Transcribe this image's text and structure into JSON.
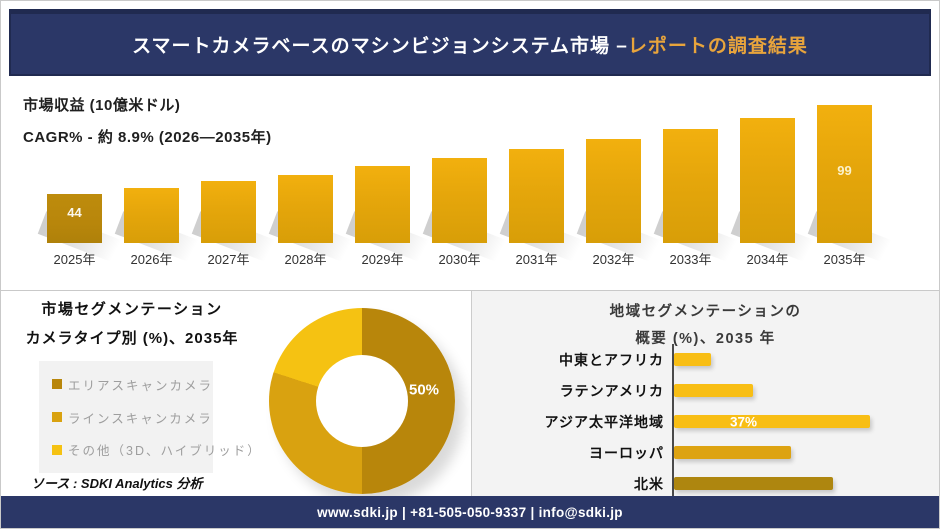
{
  "header": {
    "title_main": "スマートカメラベースのマシンビジョンシステム市場 –",
    "title_accent": "レポートの調査結果"
  },
  "revenue_section": {
    "metric_label": "市場収益 (10億米ドル)",
    "cagr_label": "CAGR% - 約 8.9% (2026―2035年)"
  },
  "segmentation_section": {
    "title_line1": "市場セグメンテーション",
    "title_line2": "カメラタイプ別 (%)、2035年",
    "source": "ソース : SDKI Analytics 分析"
  },
  "region_section": {
    "title_line1": "地域セグメンテーションの",
    "title_line2": "概要 (%)、2035 年"
  },
  "footer": {
    "contact": "www.sdki.jp | +81-505-050-9337 | info@sdki.jp"
  },
  "colors": {
    "navy": "#2B3767",
    "navy_border": "#202A50",
    "accent_gold": "#E8A43C",
    "bar_gold": "#E5A60B",
    "bar_dark_gold": "#B8860B",
    "panel_gray": "#F3F3F3"
  },
  "chart_data": [
    {
      "type": "bar",
      "title": "市場収益 (10億米ドル)",
      "subtitle": "CAGR% - 約 8.9% (2026―2035年)",
      "categories": [
        "2025年",
        "2026年",
        "2027年",
        "2028年",
        "2029年",
        "2030年",
        "2031年",
        "2032年",
        "2033年",
        "2034年",
        "2035年"
      ],
      "values": [
        44,
        48,
        52,
        56,
        61,
        66,
        72,
        78,
        84,
        91,
        99
      ],
      "data_labels": [
        "44",
        null,
        null,
        null,
        null,
        null,
        null,
        null,
        null,
        null,
        "99"
      ],
      "ylabel": "10億米ドル",
      "ylim": [
        0,
        110
      ],
      "grid": false,
      "legend_position": "none",
      "note": "only 2025 (44) and 2035 (99) carry visible data labels; intermediate values estimated from bar heights"
    },
    {
      "type": "pie",
      "donut": true,
      "title": "市場セグメンテーション カメラタイプ別 (%)、2035年",
      "segments": [
        {
          "label": "エリアスキャンカメラ",
          "value": 50,
          "color": "#B8860B",
          "data_label": "50%"
        },
        {
          "label": "ラインスキャンカメラ",
          "value": 30,
          "color": "#D9A210",
          "data_label": null
        },
        {
          "label": "その他（3D、ハイブリッド）",
          "value": 20,
          "color": "#F5C212",
          "data_label": null
        }
      ],
      "start_angle_deg": 0,
      "legend_position": "left",
      "note": "only the 50% slice is labelled; other slice values estimated from arc angles"
    },
    {
      "type": "bar",
      "orientation": "horizontal",
      "title": "地域セグメンテーションの概要 (%)、2035 年",
      "categories": [
        "中東とアフリカ",
        "ラテンアメリカ",
        "アジア太平洋地域",
        "ヨーロッパ",
        "北米"
      ],
      "values": [
        7,
        15,
        37,
        22,
        30
      ],
      "data_labels": [
        null,
        null,
        "37%",
        null,
        null
      ],
      "colors": [
        "#F8BE15",
        "#F8BE15",
        "#F8BE15",
        "#DDA312",
        "#AE860F"
      ],
      "grid": false,
      "note": "only アジア太平洋地域 (37%) is labelled; other values estimated from bar lengths"
    }
  ]
}
